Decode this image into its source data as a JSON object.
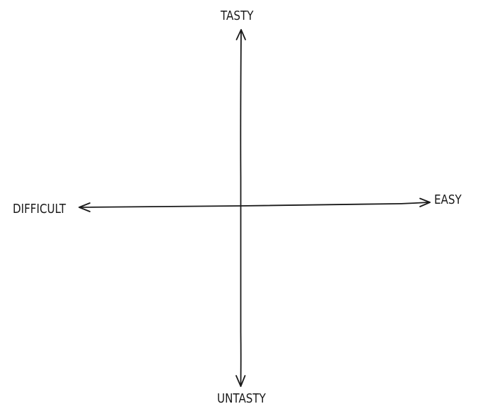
{
  "axes": {
    "top_label": "TASTY",
    "bottom_label": "UNTASTY",
    "left_label": "DIFFICULT",
    "right_label": "EASY"
  },
  "colors": {
    "ink": "#1a1a1a",
    "background": "#ffffff"
  }
}
